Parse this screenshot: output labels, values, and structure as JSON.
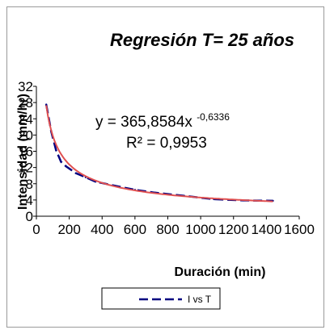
{
  "chart_data": {
    "type": "line",
    "title": "Regresión T= 25 años",
    "xlabel": "Duración (min)",
    "ylabel": "Intensidad (mm/hr)",
    "xlim": [
      0,
      1600
    ],
    "ylim": [
      0,
      32
    ],
    "x_ticks": [
      "0",
      "200",
      "400",
      "600",
      "800",
      "1000",
      "1200",
      "1400",
      "1600"
    ],
    "y_ticks": [
      "0",
      "4",
      "8",
      "12",
      "16",
      "20",
      "24",
      "28",
      "32"
    ],
    "series": [
      {
        "name": "I vs T",
        "color": "#000080",
        "style": "dashed",
        "x": [
          60,
          90,
          120,
          150,
          180,
          240,
          300,
          360,
          480,
          600,
          720,
          900,
          1080,
          1260,
          1440
        ],
        "y": [
          27.5,
          20.9,
          16.2,
          13.4,
          12.3,
          10.6,
          9.6,
          8.5,
          7.5,
          6.5,
          5.8,
          5.0,
          4.2,
          3.9,
          3.8
        ]
      }
    ],
    "trendline": {
      "type": "power",
      "coefficient": 365.8584,
      "exponent": -0.6336,
      "color": "#e05050",
      "x_range": [
        60,
        1440
      ],
      "equation_base": "y = 365,8584x",
      "equation_exp": "-0,6336",
      "r2": "R² = 0,9953"
    },
    "legend_position": "bottom",
    "grid": false
  }
}
